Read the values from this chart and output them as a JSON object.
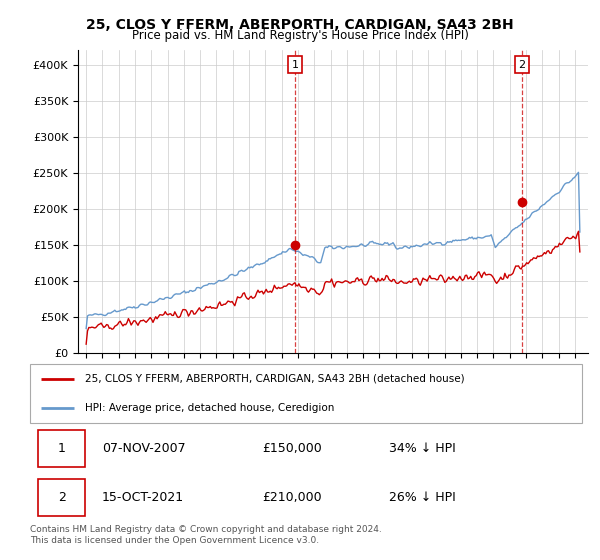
{
  "title": "25, CLOS Y FFERM, ABERPORTH, CARDIGAN, SA43 2BH",
  "subtitle": "Price paid vs. HM Land Registry's House Price Index (HPI)",
  "ylim": [
    0,
    420000
  ],
  "yticks": [
    0,
    50000,
    100000,
    150000,
    200000,
    250000,
    300000,
    350000,
    400000
  ],
  "ytick_labels": [
    "£0",
    "£50K",
    "£100K",
    "£150K",
    "£200K",
    "£250K",
    "£300K",
    "£350K",
    "£400K"
  ],
  "hpi_color": "#6699cc",
  "price_color": "#cc0000",
  "vline_color": "#cc0000",
  "t_sale1": 2007.833,
  "t_sale2": 2021.75,
  "sale1_price": 150000,
  "sale2_price": 210000,
  "legend_entries": [
    "25, CLOS Y FFERM, ABERPORTH, CARDIGAN, SA43 2BH (detached house)",
    "HPI: Average price, detached house, Ceredigion"
  ],
  "table_rows": [
    [
      "1",
      "07-NOV-2007",
      "£150,000",
      "34% ↓ HPI"
    ],
    [
      "2",
      "15-OCT-2021",
      "£210,000",
      "26% ↓ HPI"
    ]
  ],
  "footer": "Contains HM Land Registry data © Crown copyright and database right 2024.\nThis data is licensed under the Open Government Licence v3.0.",
  "background_color": "#ffffff",
  "grid_color": "#cccccc"
}
